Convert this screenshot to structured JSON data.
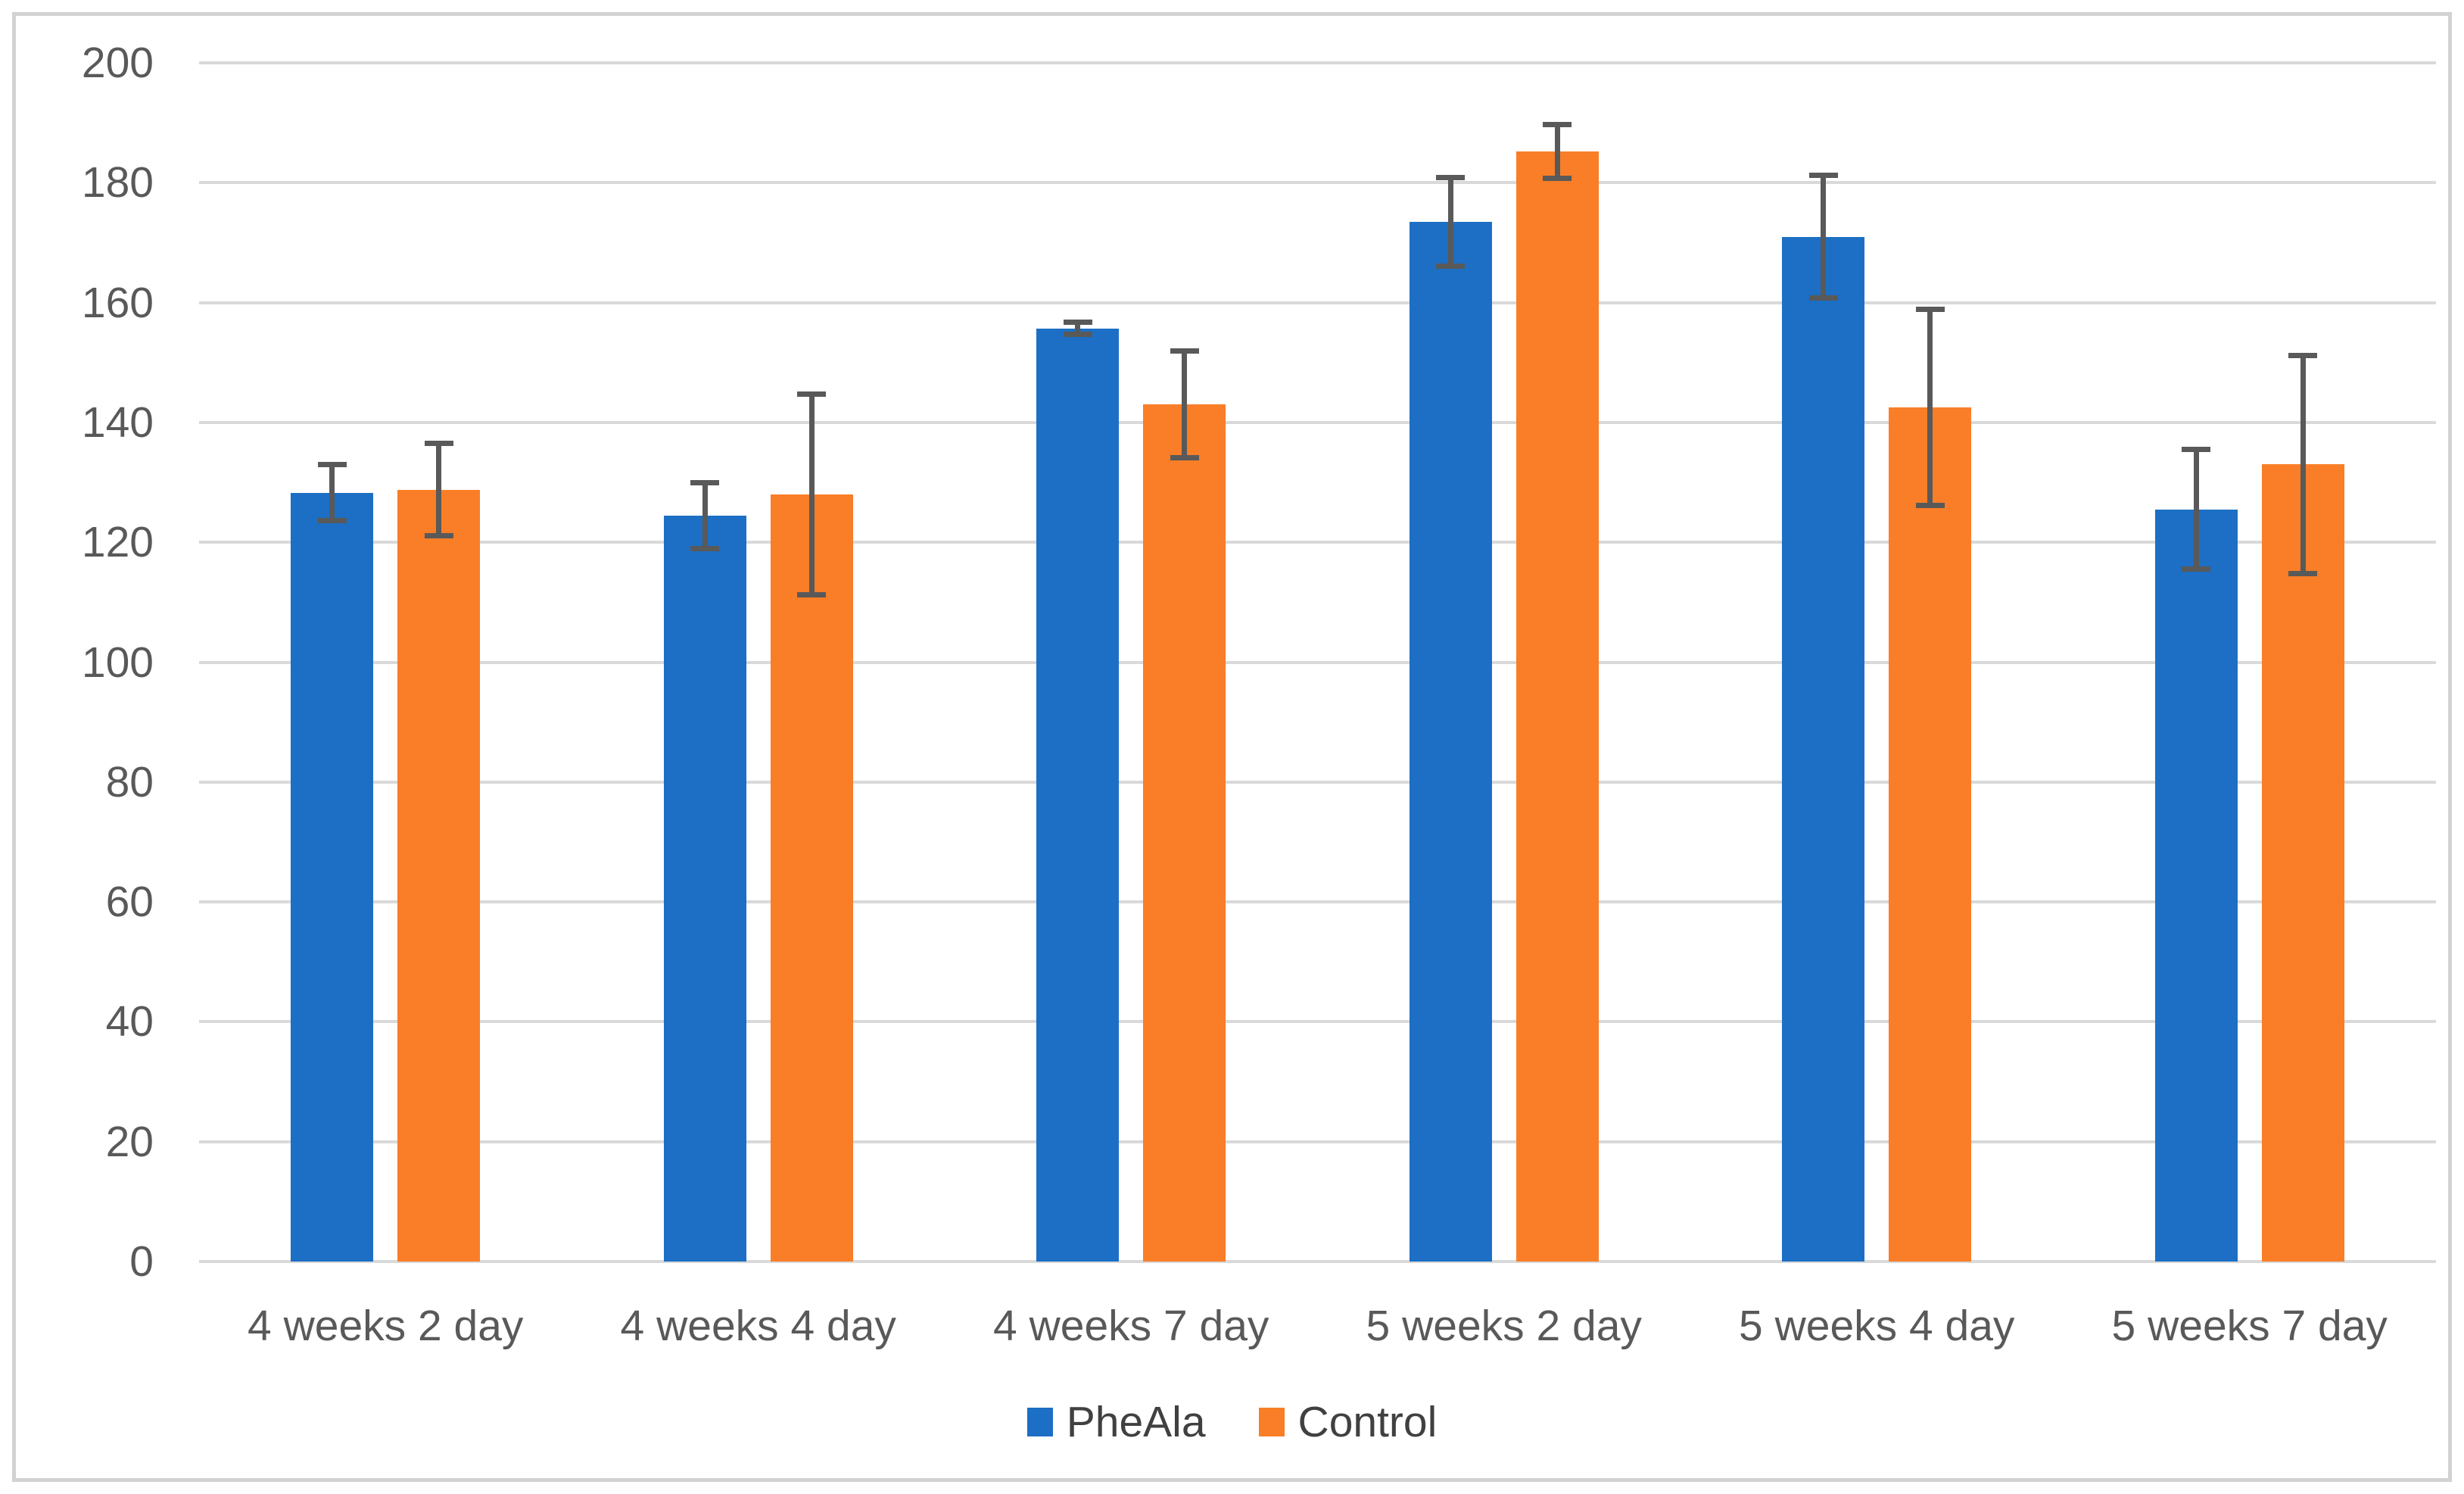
{
  "chart_data": {
    "type": "bar",
    "title": "",
    "xlabel": "",
    "ylabel": "",
    "categories": [
      "4 weeks 2 day",
      "4 weeks 4 day",
      "4 weeks 7 day",
      "5 weeks 2 day",
      "5 weeks 4 day",
      "5 weeks 7 day"
    ],
    "series": [
      {
        "name": "PheAla",
        "color": "#1c6fc4",
        "values": [
          128.3,
          124.5,
          155.7,
          173.5,
          171.0,
          125.5
        ],
        "errors": [
          4.7,
          5.5,
          1.0,
          7.4,
          10.2,
          10.0
        ]
      },
      {
        "name": "Control",
        "color": "#f97e27",
        "values": [
          128.8,
          128.0,
          143.0,
          185.2,
          142.5,
          133.0
        ],
        "errors": [
          7.7,
          16.7,
          8.9,
          4.5,
          16.4,
          18.2
        ]
      }
    ],
    "ylim": [
      0,
      200
    ],
    "yticks": [
      0,
      20,
      40,
      60,
      80,
      100,
      120,
      140,
      160,
      180,
      200
    ],
    "grid": true,
    "legend_position": "bottom",
    "error_bar_color": "#595959",
    "gridline_color": "#d9d9d9",
    "axis_text_color": "#595959",
    "legend_text_color": "#404040"
  }
}
